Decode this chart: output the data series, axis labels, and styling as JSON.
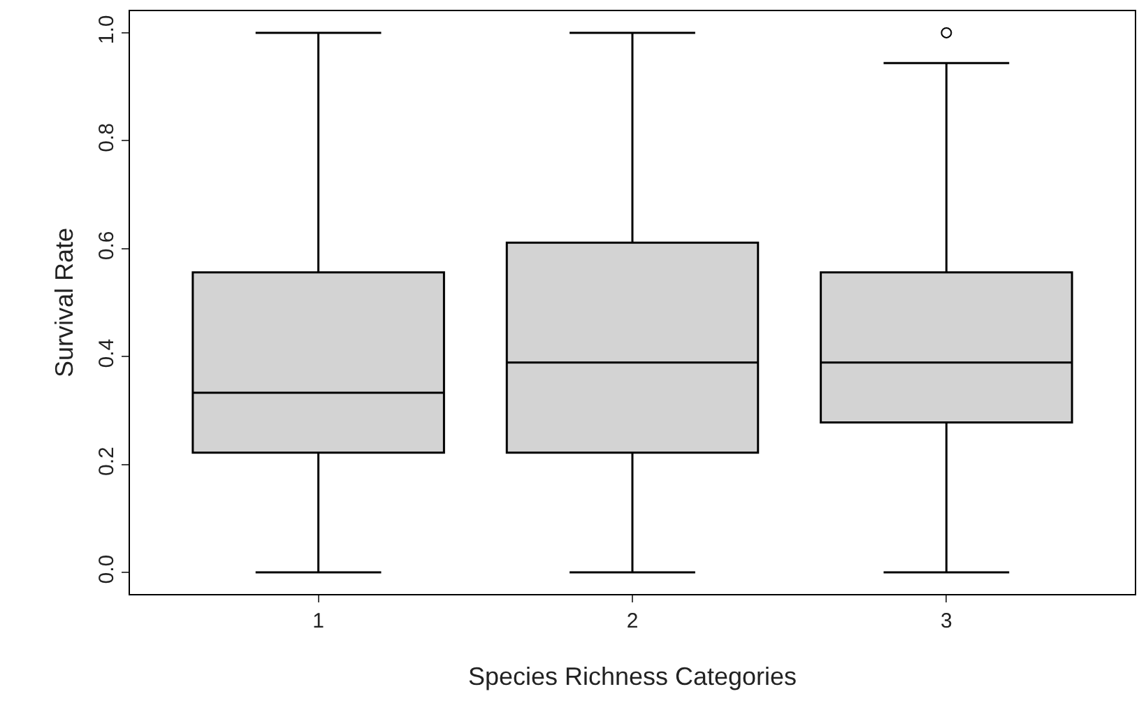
{
  "chart_data": {
    "type": "box",
    "xlabel": "Species Richness Categories",
    "ylabel": "Survival Rate",
    "categories": [
      "1",
      "2",
      "3"
    ],
    "boxes": [
      {
        "low": 0.0,
        "q1": 0.222,
        "median": 0.333,
        "q3": 0.556,
        "high": 1.0
      },
      {
        "low": 0.0,
        "q1": 0.222,
        "median": 0.389,
        "q3": 0.611,
        "high": 1.0
      },
      {
        "low": 0.0,
        "q1": 0.278,
        "median": 0.389,
        "q3": 0.556,
        "high": 0.944,
        "outliers": [
          1.0
        ]
      }
    ],
    "color": "#d3d3d3",
    "ylim": [
      -0.04,
      1.04
    ],
    "yticks": [
      {
        "value": 0,
        "label": "0.0"
      },
      {
        "value": 0.2,
        "label": "0.2"
      },
      {
        "value": 0.4,
        "label": "0.4"
      },
      {
        "value": 0.6,
        "label": "0.6"
      },
      {
        "value": 0.8,
        "label": "0.8"
      },
      {
        "value": 1,
        "label": "1.0"
      }
    ]
  }
}
